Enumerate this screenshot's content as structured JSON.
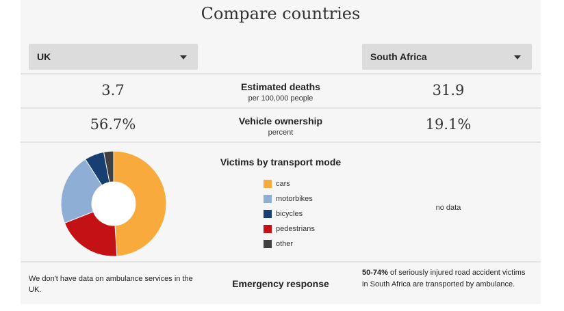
{
  "title": "Compare countries",
  "selectors": {
    "left_country": "UK",
    "right_country": "South Africa"
  },
  "stats": [
    {
      "label": "Estimated deaths",
      "sub": "per 100,000 people",
      "left": "3.7",
      "right": "31.9"
    },
    {
      "label": "Vehicle ownership",
      "sub": "percent",
      "left": "56.7%",
      "right": "19.1%"
    }
  ],
  "victims": {
    "title": "Victims by transport mode",
    "right_text": "no data",
    "legend": [
      {
        "label": "cars",
        "color": "#f9aa3c"
      },
      {
        "label": "motorbikes",
        "color": "#8eaed6"
      },
      {
        "label": "bicycles",
        "color": "#173f72"
      },
      {
        "label": "pedestrians",
        "color": "#c41116"
      },
      {
        "label": "other",
        "color": "#404040"
      }
    ]
  },
  "chart_data": {
    "type": "pie",
    "categories": [
      "cars",
      "motorbikes",
      "bicycles",
      "pedestrians",
      "other"
    ],
    "values": [
      49,
      22,
      6,
      20,
      3
    ],
    "colors": [
      "#f9aa3c",
      "#8eaed6",
      "#173f72",
      "#c41116",
      "#404040"
    ],
    "order": [
      "cars",
      "pedestrians",
      "motorbikes",
      "bicycles",
      "other"
    ],
    "donut": true
  },
  "emergency": {
    "label": "Emergency response",
    "left_text": "We don't have data on ambulance services in the UK.",
    "right_highlight": "50-74%",
    "right_text": " of seriously injured road accident victims in South Africa are transported by ambulance."
  }
}
